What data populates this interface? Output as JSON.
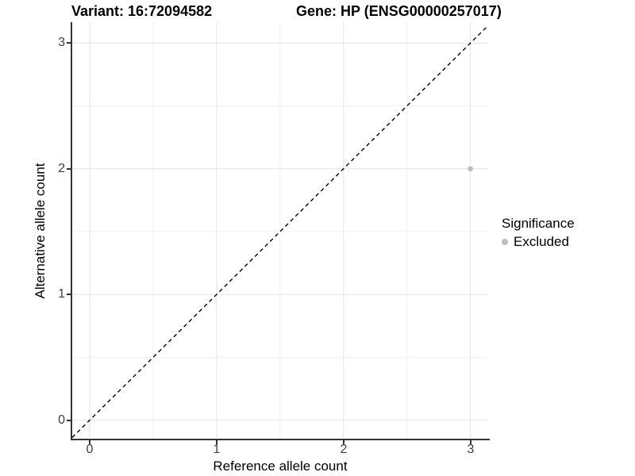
{
  "header": {
    "variant_title": "Variant: 16:72094582",
    "gene_title": "Gene: HP (ENSG00000257017)"
  },
  "axes": {
    "x": {
      "title": "Reference allele count",
      "tick_labels": [
        "0",
        "1",
        "2",
        "3"
      ]
    },
    "y": {
      "title": "Alternative allele count",
      "tick_labels": [
        "0",
        "1",
        "2",
        "3"
      ]
    }
  },
  "legend": {
    "title": "Significance",
    "items": [
      {
        "label": "Excluded",
        "marker_color": "#bdbdbd"
      }
    ]
  },
  "colors": {
    "background": "#ffffff",
    "axis_line": "#333333",
    "tick_text": "#404040",
    "grid_major": "#e4e4e4",
    "grid_minor": "#f1f1f1",
    "identity_line": "#000000",
    "point": "#bdbdbd"
  },
  "chart_data": {
    "type": "scatter",
    "title": "Variant: 16:72094582 / Gene: HP (ENSG00000257017)",
    "xlabel": "Reference allele count",
    "ylabel": "Alternative allele count",
    "xlim": [
      -0.138,
      3.14
    ],
    "ylim": [
      -0.148,
      3.166
    ],
    "x_major_ticks": [
      0,
      1,
      2,
      3
    ],
    "y_major_ticks": [
      0,
      1,
      2,
      3
    ],
    "x_minor_ticks": [
      0.5,
      1.5,
      2.5
    ],
    "y_minor_ticks": [
      0.5,
      1.5,
      2.5
    ],
    "grid": "major and minor, light gray on white",
    "legend_position": "right",
    "reference_line": {
      "type": "identity y=x",
      "style": "dashed",
      "color": "#000000"
    },
    "series": [
      {
        "name": "Excluded",
        "color": "#bdbdbd",
        "point_radius": 3.3,
        "points": [
          {
            "x": 3,
            "y": 2
          }
        ]
      }
    ]
  }
}
